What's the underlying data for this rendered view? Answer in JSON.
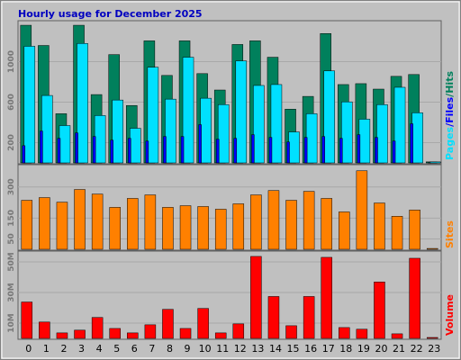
{
  "title": "Hourly usage for December 2025",
  "chart_data": [
    {
      "type": "bar",
      "ylim": [
        0,
        1396
      ],
      "yticks": [
        200,
        600,
        1000
      ],
      "series": [
        {
          "name": "Hits",
          "color": "#00805c",
          "values": [
            1360,
            1160,
            486,
            1360,
            675,
            1070,
            567,
            1206,
            864,
            1206,
            882,
            720,
            1170,
            1206,
            1044,
            531,
            657,
            1278,
            774,
            783,
            729,
            855,
            873,
            10
          ]
        },
        {
          "name": "Files",
          "color": "#00e0ff",
          "values": [
            1152,
            666,
            369,
            1180,
            468,
            621,
            342,
            945,
            630,
            1044,
            639,
            576,
            1008,
            765,
            774,
            306,
            486,
            909,
            603,
            432,
            576,
            747,
            495,
            10
          ]
        },
        {
          "name": "Pages",
          "color": "#0000ff",
          "values": [
            170,
            315,
            243,
            297,
            261,
            225,
            243,
            216,
            261,
            261,
            378,
            234,
            243,
            279,
            252,
            207,
            252,
            261,
            243,
            279,
            252,
            216,
            387,
            2
          ]
        }
      ]
    },
    {
      "type": "bar",
      "ylim": [
        0,
        403
      ],
      "yticks": [
        50,
        150,
        300
      ],
      "series": [
        {
          "name": "Sites",
          "color": "#ff8000",
          "values": [
            236,
            249,
            227,
            288,
            266,
            202,
            245,
            262,
            202,
            210,
            206,
            193,
            219,
            262,
            283,
            236,
            279,
            245,
            180,
            378,
            223,
            159,
            189,
            4
          ]
        }
      ]
    },
    {
      "type": "bar",
      "ylim": [
        0,
        56.5
      ],
      "yticks": [
        {
          "value": 10,
          "label": "10M"
        },
        {
          "value": 30,
          "label": "30M"
        },
        {
          "value": 50,
          "label": "50M"
        }
      ],
      "categories": [
        "0",
        "1",
        "2",
        "3",
        "4",
        "5",
        "6",
        "7",
        "8",
        "9",
        "10",
        "11",
        "12",
        "13",
        "14",
        "15",
        "16",
        "17",
        "18",
        "19",
        "20",
        "21",
        "22",
        "23"
      ],
      "series": [
        {
          "name": "Volume",
          "color": "#ff0000",
          "values": [
            23.8,
            10.7,
            3.6,
            5.4,
            13.7,
            6.5,
            3.6,
            8.9,
            19.0,
            6.5,
            19.6,
            3.6,
            9.5,
            53.6,
            27.4,
            8.3,
            27.4,
            53.0,
            7.1,
            6.0,
            36.9,
            3.0,
            52.4,
            0.6
          ]
        }
      ]
    }
  ]
}
